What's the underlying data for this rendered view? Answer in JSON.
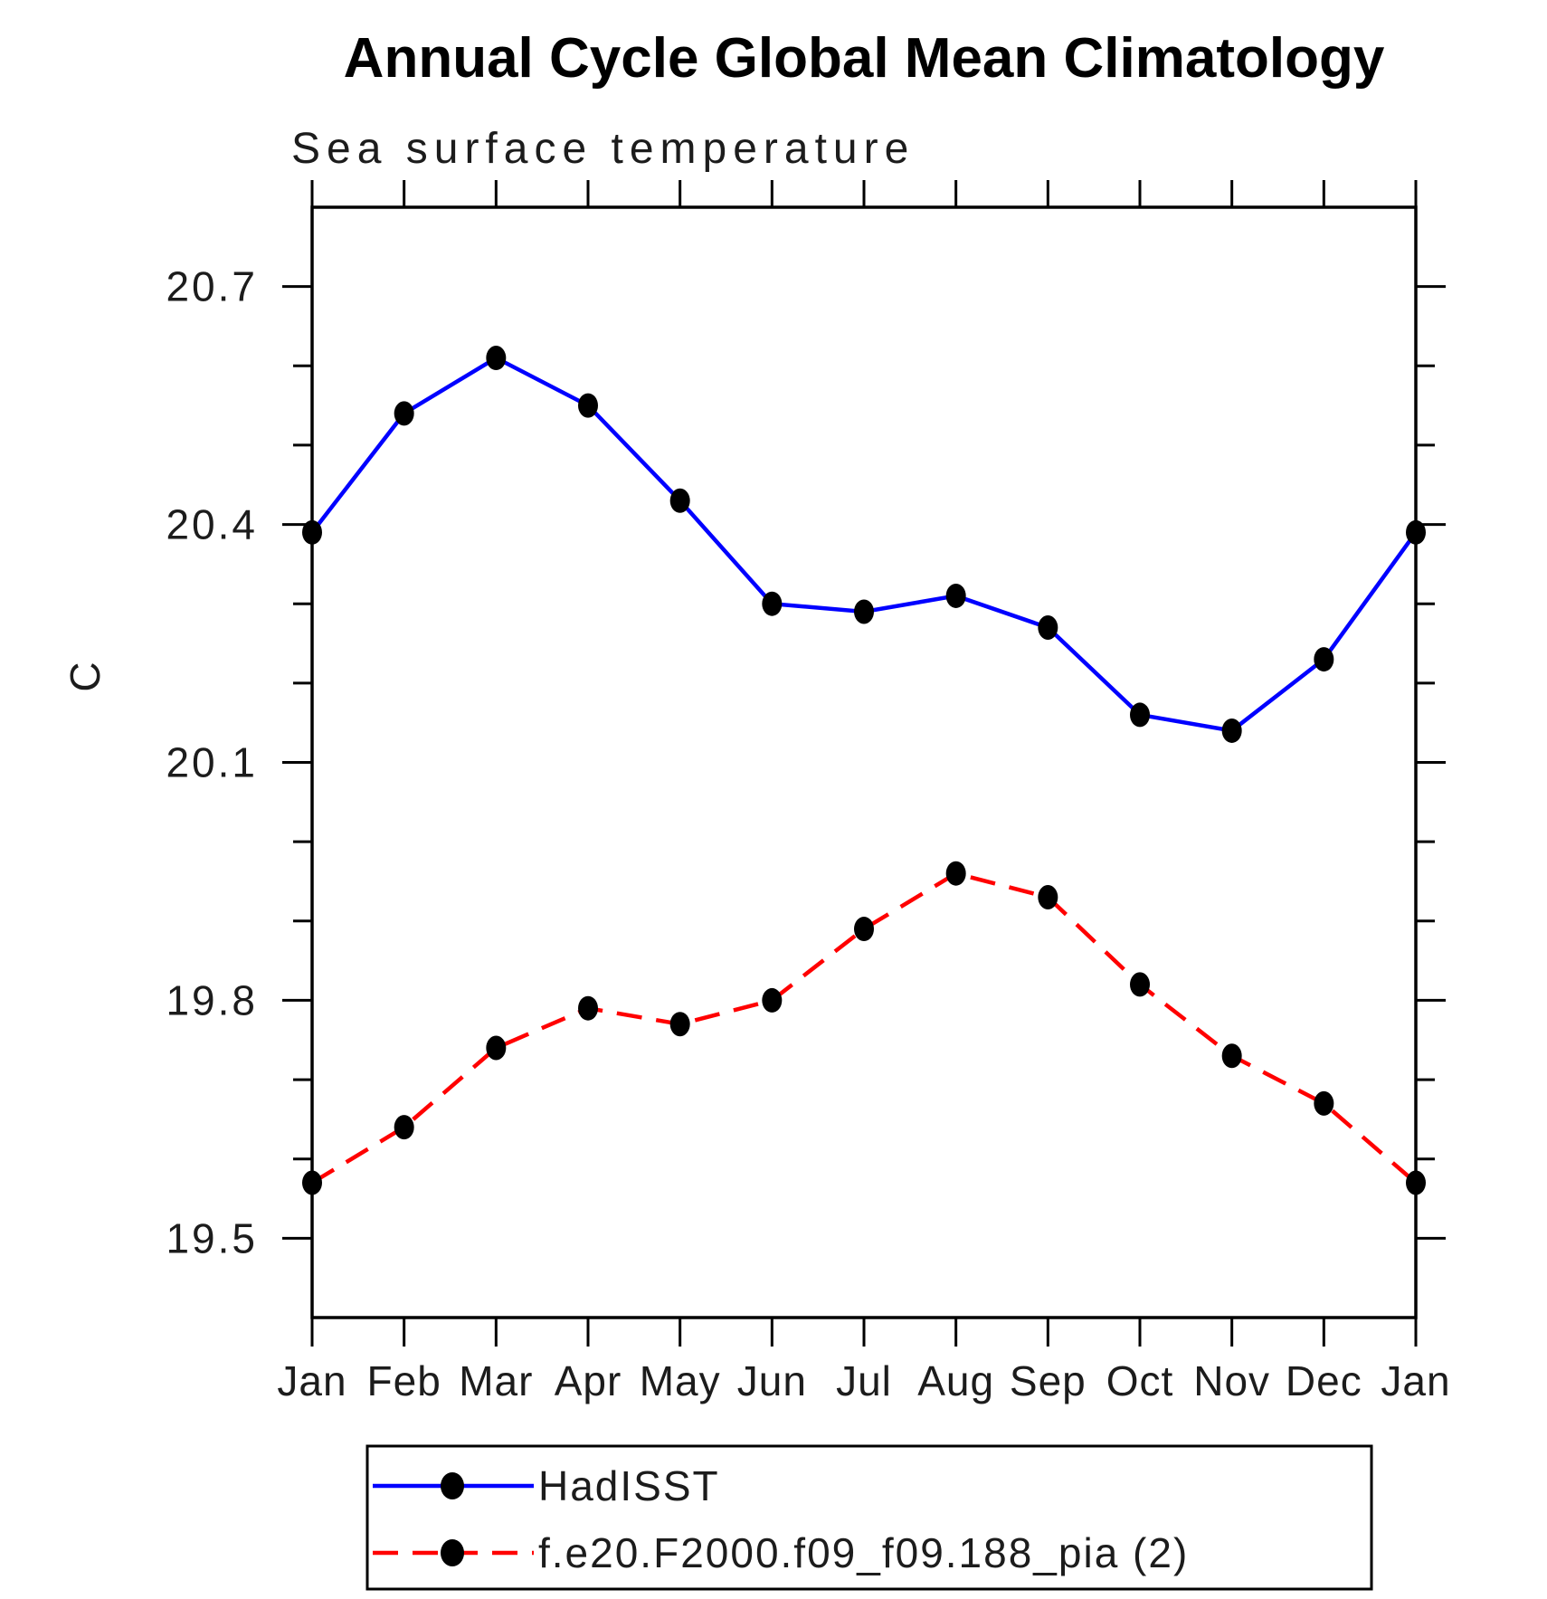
{
  "chart_data": {
    "type": "line",
    "title": "Annual Cycle Global Mean Climatology",
    "subtitle": "Sea surface temperature",
    "ylabel": "C",
    "x_categories": [
      "Jan",
      "Feb",
      "Mar",
      "Apr",
      "May",
      "Jun",
      "Jul",
      "Aug",
      "Sep",
      "Oct",
      "Nov",
      "Dec",
      "Jan"
    ],
    "ylim": [
      19.4,
      20.8
    ],
    "y_major_ticks": [
      19.5,
      19.8,
      20.1,
      20.4,
      20.7
    ],
    "y_major_tick_labels": [
      "19.5",
      "19.8",
      "20.1",
      "20.4",
      "20.7"
    ],
    "y_minor_step": 0.1,
    "grid": false,
    "legend_position": "bottom",
    "marker": "filled-black-dot",
    "series": [
      {
        "name": "HadISST",
        "color": "#0000ff",
        "style": "solid",
        "marker_color": "#000000",
        "values": [
          20.39,
          20.54,
          20.61,
          20.55,
          20.43,
          20.3,
          20.29,
          20.31,
          20.27,
          20.16,
          20.14,
          20.23,
          20.39
        ]
      },
      {
        "name": "f.e20.F2000.f09_f09.188_pia (2)",
        "color": "#ff0000",
        "style": "dashed",
        "marker_color": "#000000",
        "values": [
          19.57,
          19.64,
          19.74,
          19.79,
          19.77,
          19.8,
          19.89,
          19.96,
          19.93,
          19.82,
          19.73,
          19.67,
          19.57
        ]
      }
    ]
  }
}
